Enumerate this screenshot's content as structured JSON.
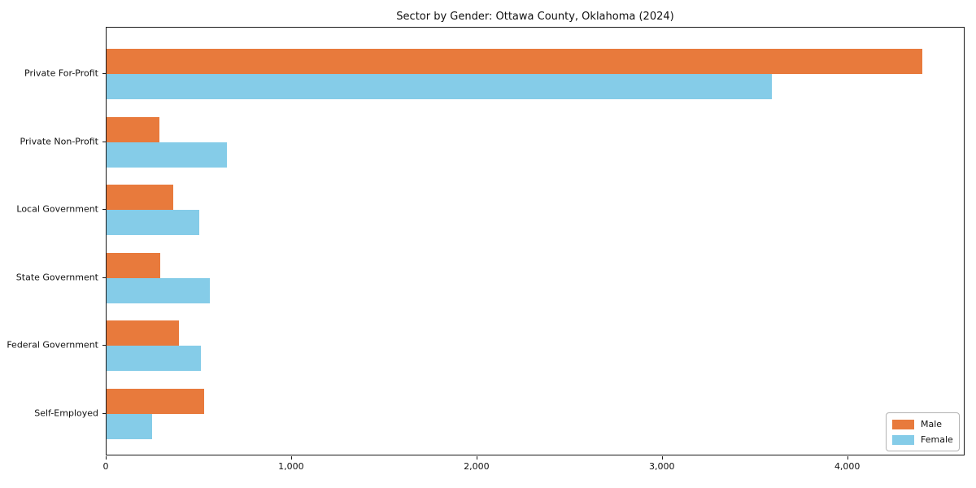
{
  "chart_data": {
    "type": "bar",
    "orientation": "horizontal",
    "title": "Sector by Gender: Ottawa County, Oklahoma (2024)",
    "categories": [
      "Private For-Profit",
      "Private Non-Profit",
      "Local Government",
      "State Government",
      "Federal Government",
      "Self-Employed"
    ],
    "series": [
      {
        "name": "Male",
        "color": "#e87a3c",
        "values": [
          4400,
          285,
          360,
          290,
          390,
          525
        ]
      },
      {
        "name": "Female",
        "color": "#85cce8",
        "values": [
          3590,
          650,
          500,
          555,
          510,
          245
        ]
      }
    ],
    "xlabel": "",
    "ylabel": "",
    "xlim": [
      0,
      4633
    ],
    "x_ticks": [
      {
        "value": 0,
        "label": "0"
      },
      {
        "value": 1000,
        "label": "1,000"
      },
      {
        "value": 2000,
        "label": "2,000"
      },
      {
        "value": 3000,
        "label": "3,000"
      },
      {
        "value": 4000,
        "label": "4,000"
      }
    ],
    "grid": false,
    "legend_position": "lower right"
  }
}
